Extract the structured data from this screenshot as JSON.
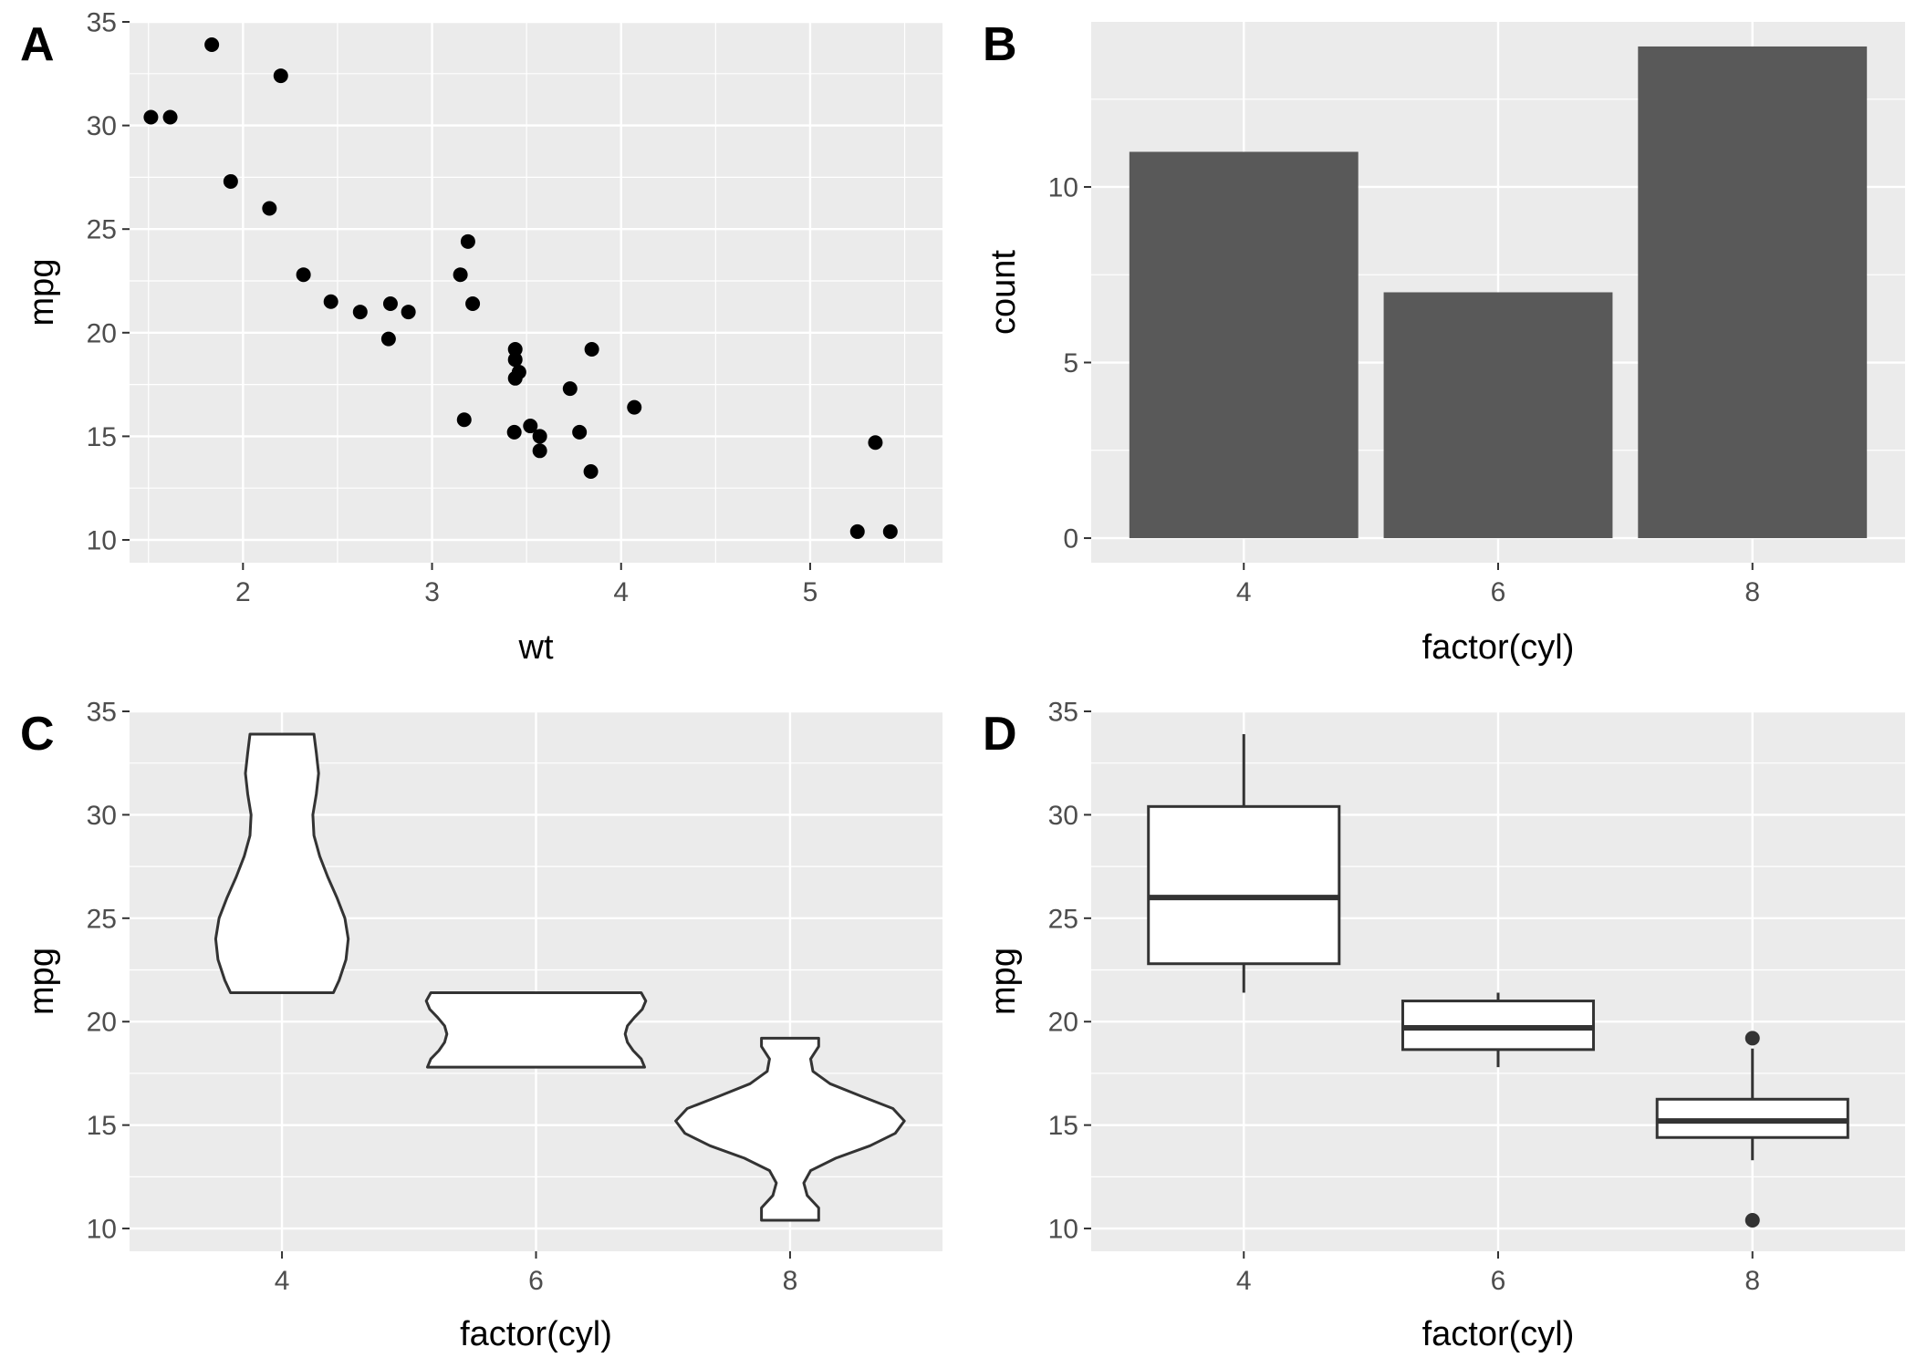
{
  "chart_data": [
    {
      "tag": "A",
      "type": "scatter",
      "xlabel": "wt",
      "ylabel": "mpg",
      "xlim": [
        1.4,
        5.7
      ],
      "ylim": [
        8.9,
        35.0
      ],
      "xticks": [
        2,
        3,
        4,
        5
      ],
      "yticks": [
        10,
        15,
        20,
        25,
        30,
        35
      ],
      "grid": true,
      "points": [
        {
          "x": 2.62,
          "y": 21.0
        },
        {
          "x": 2.875,
          "y": 21.0
        },
        {
          "x": 2.32,
          "y": 22.8
        },
        {
          "x": 3.215,
          "y": 21.4
        },
        {
          "x": 3.44,
          "y": 18.7
        },
        {
          "x": 3.46,
          "y": 18.1
        },
        {
          "x": 3.57,
          "y": 14.3
        },
        {
          "x": 3.19,
          "y": 24.4
        },
        {
          "x": 3.15,
          "y": 22.8
        },
        {
          "x": 3.44,
          "y": 19.2
        },
        {
          "x": 3.44,
          "y": 17.8
        },
        {
          "x": 4.07,
          "y": 16.4
        },
        {
          "x": 3.73,
          "y": 17.3
        },
        {
          "x": 3.78,
          "y": 15.2
        },
        {
          "x": 5.25,
          "y": 10.4
        },
        {
          "x": 5.424,
          "y": 10.4
        },
        {
          "x": 5.345,
          "y": 14.7
        },
        {
          "x": 2.2,
          "y": 32.4
        },
        {
          "x": 1.615,
          "y": 30.4
        },
        {
          "x": 1.835,
          "y": 33.9
        },
        {
          "x": 2.465,
          "y": 21.5
        },
        {
          "x": 3.52,
          "y": 15.5
        },
        {
          "x": 3.435,
          "y": 15.2
        },
        {
          "x": 3.84,
          "y": 13.3
        },
        {
          "x": 3.845,
          "y": 19.2
        },
        {
          "x": 1.935,
          "y": 27.3
        },
        {
          "x": 2.14,
          "y": 26.0
        },
        {
          "x": 1.513,
          "y": 30.4
        },
        {
          "x": 3.17,
          "y": 15.8
        },
        {
          "x": 2.77,
          "y": 19.7
        },
        {
          "x": 3.57,
          "y": 15.0
        },
        {
          "x": 2.78,
          "y": 21.4
        }
      ]
    },
    {
      "tag": "B",
      "type": "bar",
      "xlabel": "factor(cyl)",
      "ylabel": "count",
      "categories": [
        "4",
        "6",
        "8"
      ],
      "values": [
        11,
        7,
        14
      ],
      "ylim": [
        -0.7,
        14.7
      ],
      "yticks": [
        0,
        5,
        10
      ],
      "grid": true
    },
    {
      "tag": "C",
      "type": "violin",
      "xlabel": "factor(cyl)",
      "ylabel": "mpg",
      "categories": [
        "4",
        "6",
        "8"
      ],
      "ylim": [
        8.9,
        35.0
      ],
      "yticks": [
        10,
        15,
        20,
        25,
        30,
        35
      ],
      "grid": true,
      "violins": [
        {
          "profile": [
            [
              21.4,
              0.45
            ],
            [
              22.0,
              0.5
            ],
            [
              23.0,
              0.56
            ],
            [
              24.0,
              0.58
            ],
            [
              25.0,
              0.55
            ],
            [
              26.0,
              0.48
            ],
            [
              27.0,
              0.4
            ],
            [
              28.0,
              0.33
            ],
            [
              29.0,
              0.28
            ],
            [
              30.0,
              0.27
            ],
            [
              31.0,
              0.3
            ],
            [
              32.0,
              0.32
            ],
            [
              33.0,
              0.3
            ],
            [
              33.9,
              0.28
            ]
          ]
        },
        {
          "profile": [
            [
              17.8,
              0.95
            ],
            [
              18.2,
              0.92
            ],
            [
              18.6,
              0.85
            ],
            [
              19.0,
              0.8
            ],
            [
              19.4,
              0.78
            ],
            [
              19.8,
              0.8
            ],
            [
              20.2,
              0.86
            ],
            [
              20.6,
              0.93
            ],
            [
              21.0,
              0.96
            ],
            [
              21.4,
              0.92
            ]
          ]
        },
        {
          "profile": [
            [
              10.4,
              0.25
            ],
            [
              11.0,
              0.25
            ],
            [
              11.6,
              0.15
            ],
            [
              12.2,
              0.12
            ],
            [
              12.8,
              0.18
            ],
            [
              13.4,
              0.4
            ],
            [
              14.0,
              0.7
            ],
            [
              14.6,
              0.92
            ],
            [
              15.2,
              1.0
            ],
            [
              15.8,
              0.9
            ],
            [
              16.4,
              0.62
            ],
            [
              17.0,
              0.35
            ],
            [
              17.6,
              0.2
            ],
            [
              18.2,
              0.18
            ],
            [
              18.8,
              0.25
            ],
            [
              19.2,
              0.25
            ]
          ]
        }
      ]
    },
    {
      "tag": "D",
      "type": "box",
      "xlabel": "factor(cyl)",
      "ylabel": "mpg",
      "categories": [
        "4",
        "6",
        "8"
      ],
      "ylim": [
        8.9,
        35.0
      ],
      "yticks": [
        10,
        15,
        20,
        25,
        30,
        35
      ],
      "grid": true,
      "boxes": [
        {
          "lower_whisker": 21.4,
          "q1": 22.8,
          "median": 26.0,
          "q3": 30.4,
          "upper_whisker": 33.9,
          "outliers": []
        },
        {
          "lower_whisker": 17.8,
          "q1": 18.65,
          "median": 19.7,
          "q3": 21.0,
          "upper_whisker": 21.4,
          "outliers": []
        },
        {
          "lower_whisker": 13.3,
          "q1": 14.4,
          "median": 15.2,
          "q3": 16.25,
          "upper_whisker": 18.7,
          "outliers": [
            10.4,
            19.2
          ]
        }
      ]
    }
  ]
}
